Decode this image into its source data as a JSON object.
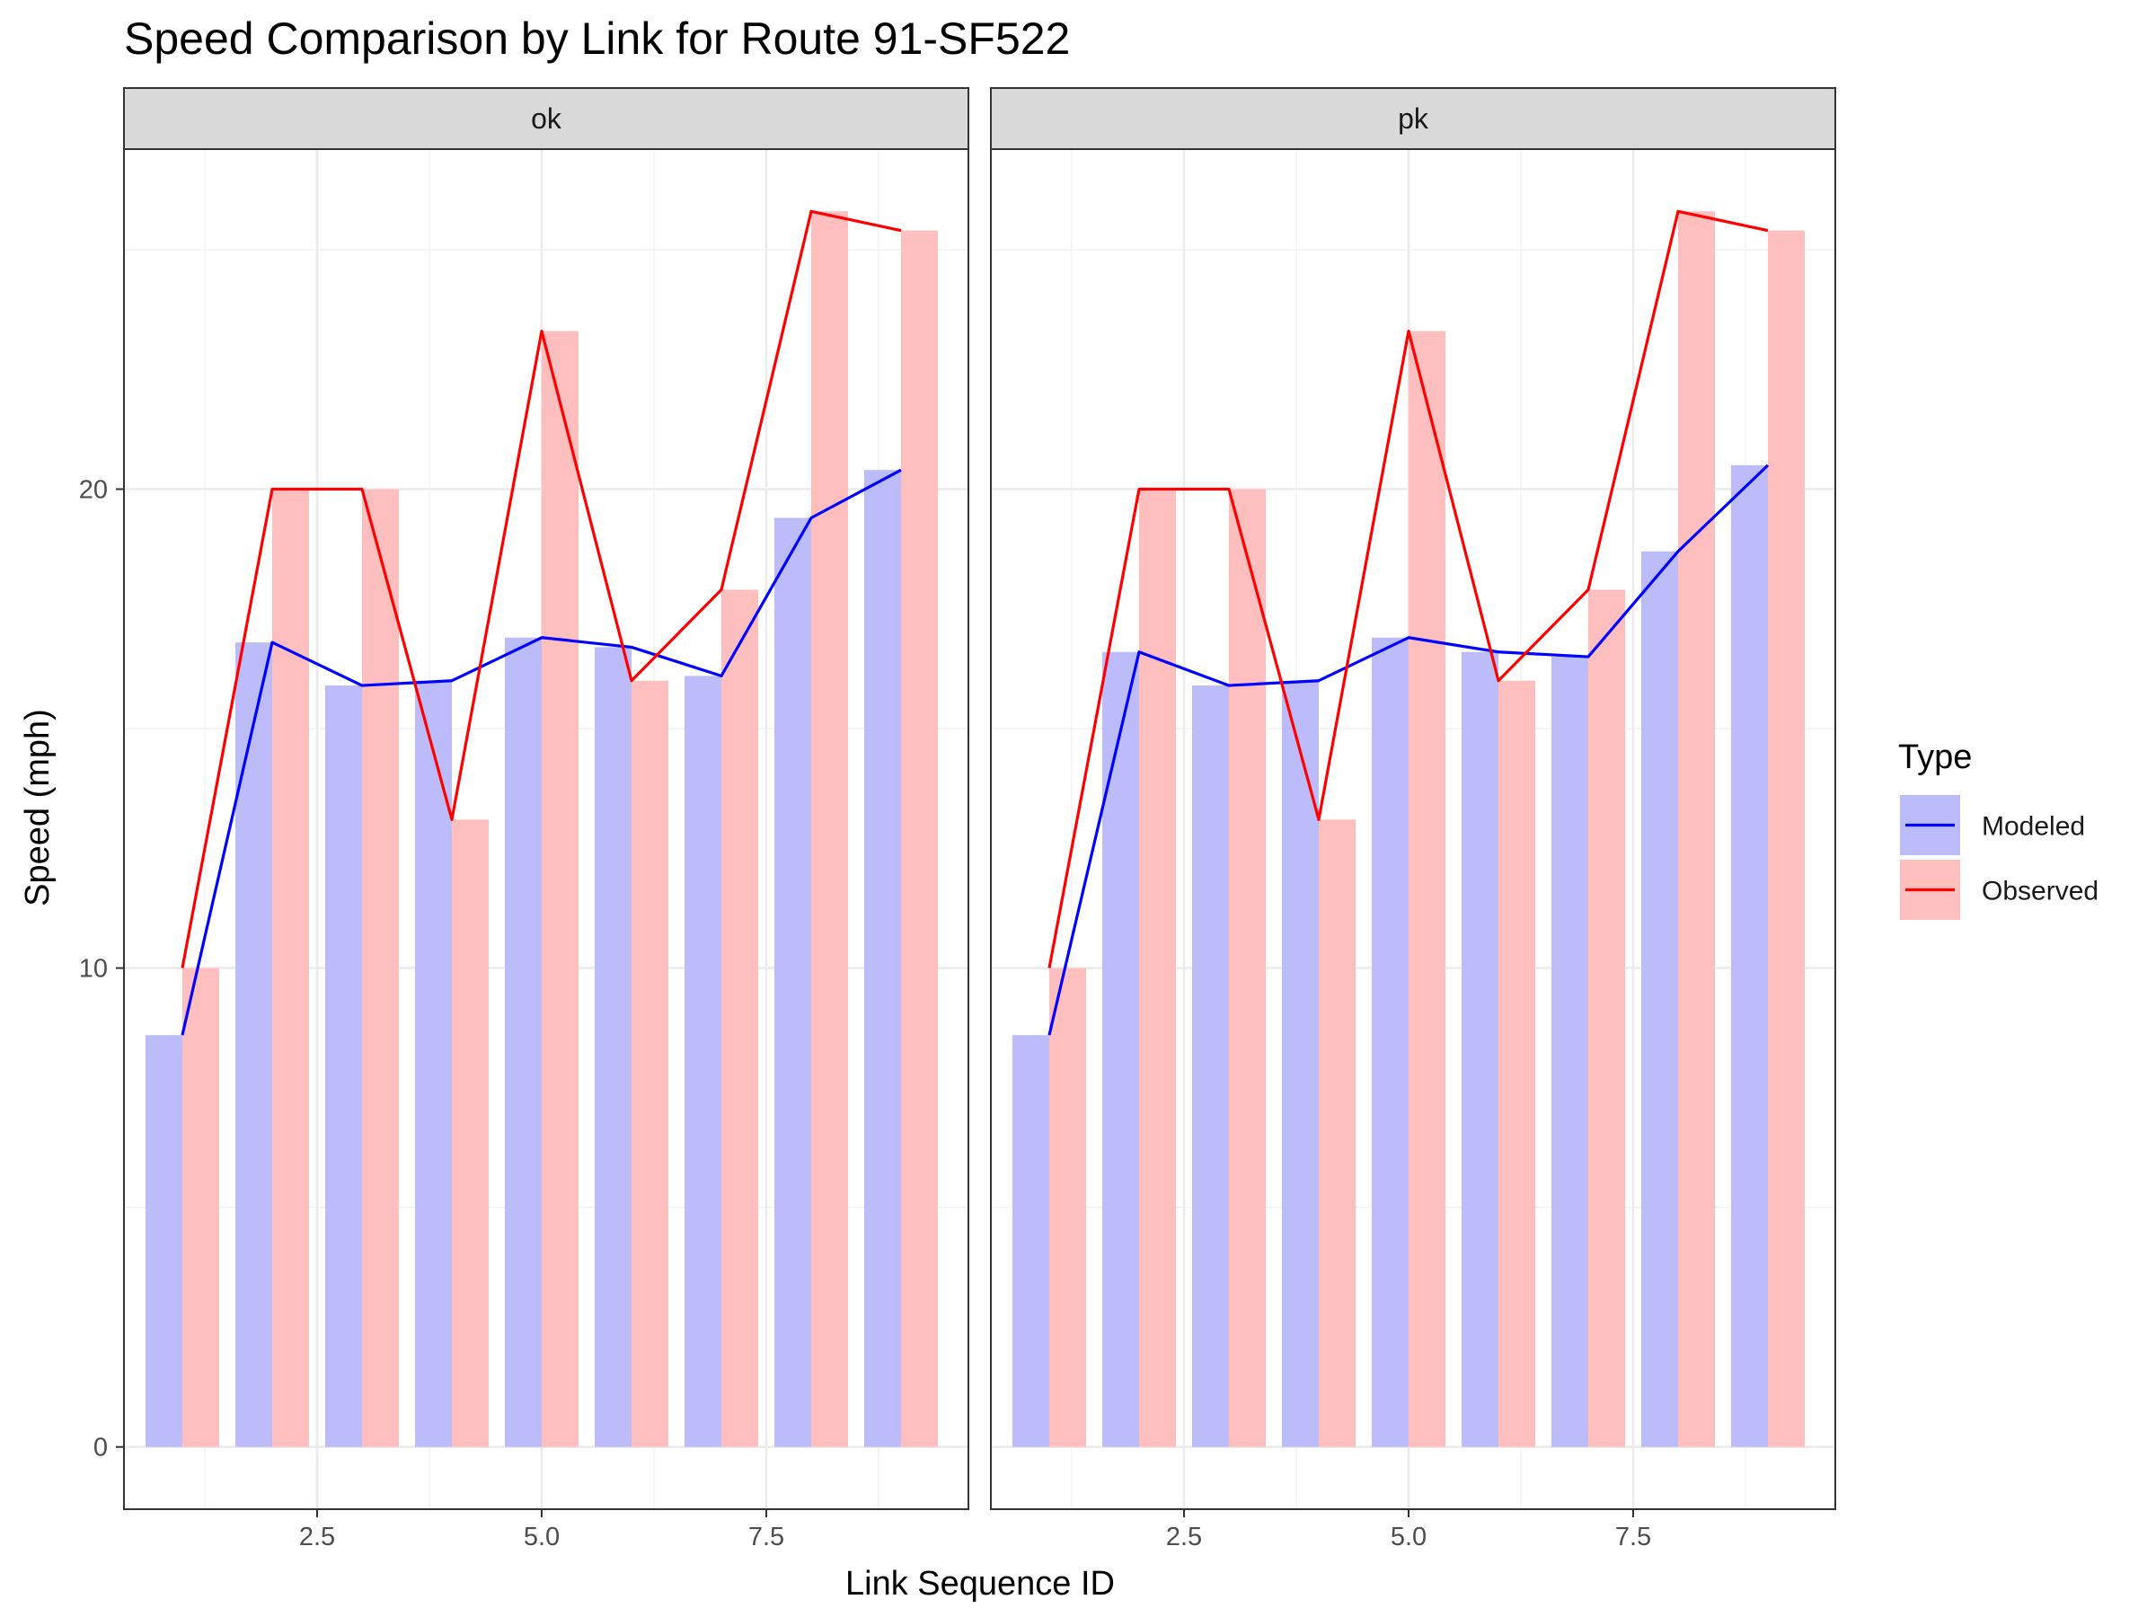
{
  "chart_data": {
    "type": "bar",
    "title": "Speed Comparison by Link for Route 91-SF522",
    "xlabel": "Link Sequence ID",
    "ylabel": "Speed (mph)",
    "x_ticks": [
      2.5,
      5.0,
      7.5
    ],
    "x_tick_labels": [
      "2.5",
      "5.0",
      "7.5"
    ],
    "y_ticks": [
      0,
      10,
      20
    ],
    "y_tick_labels": [
      "0",
      "10",
      "20"
    ],
    "xlim": [
      0.35,
      9.75
    ],
    "ylim": [
      -1.3,
      27.1
    ],
    "legend": {
      "title": "Type",
      "position": "right",
      "items": [
        {
          "label": "Modeled",
          "bar_color": "#bcbcfa",
          "line_color": "#0000ff"
        },
        {
          "label": "Observed",
          "bar_color": "#ffbfbf",
          "line_color": "#ff0000"
        }
      ]
    },
    "panels": [
      {
        "name": "ok",
        "x": [
          1,
          2,
          3,
          4,
          5,
          6,
          7,
          8,
          9
        ],
        "series": [
          {
            "name": "Modeled",
            "values": [
              8.6,
              16.8,
              15.9,
              16.0,
              16.9,
              16.7,
              16.1,
              19.4,
              20.4
            ]
          },
          {
            "name": "Observed",
            "values": [
              10.0,
              20.0,
              20.0,
              13.1,
              23.3,
              16.0,
              17.9,
              25.8,
              25.4
            ]
          }
        ]
      },
      {
        "name": "pk",
        "x": [
          1,
          2,
          3,
          4,
          5,
          6,
          7,
          8,
          9
        ],
        "series": [
          {
            "name": "Modeled",
            "values": [
              8.6,
              16.6,
              15.9,
              16.0,
              16.9,
              16.6,
              16.5,
              18.7,
              20.5
            ]
          },
          {
            "name": "Observed",
            "values": [
              10.0,
              20.0,
              20.0,
              13.1,
              23.3,
              16.0,
              17.9,
              25.8,
              25.4
            ]
          }
        ]
      }
    ]
  }
}
